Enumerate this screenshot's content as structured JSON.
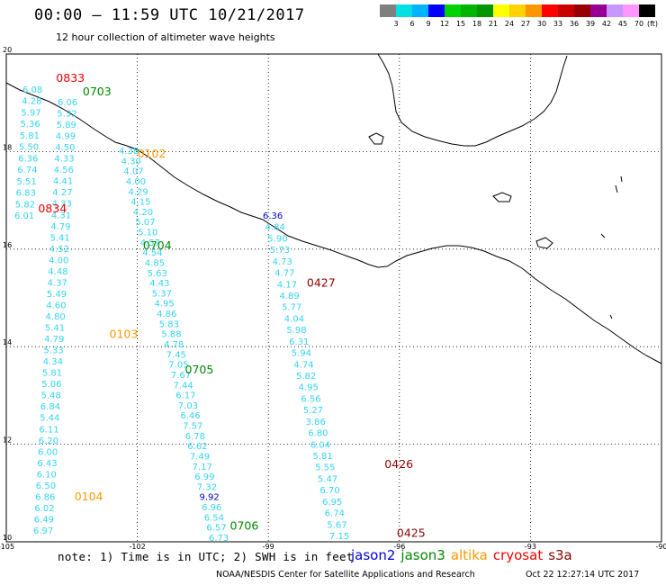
{
  "header": {
    "title": "00:00 – 11:59 UTC 10/21/2017",
    "subtitle": "12 hour collection of altimeter wave heights"
  },
  "colorbar": {
    "unit": "(ft)",
    "colors": [
      "#7f7f7f",
      "#00e0e0",
      "#00b4ff",
      "#0000ff",
      "#00d200",
      "#00b400",
      "#009600",
      "#ffff00",
      "#ffd200",
      "#ff9600",
      "#ff0000",
      "#c80000",
      "#960000",
      "#960096",
      "#c896ff",
      "#ff96ff",
      "#000000"
    ],
    "labels": [
      "3",
      "6",
      "9",
      "12",
      "15",
      "18",
      "21",
      "24",
      "27",
      "30",
      "33",
      "36",
      "39",
      "42",
      "45",
      "70"
    ]
  },
  "axes": {
    "x_ticks": [
      "-105",
      "-102",
      "-99",
      "-96",
      "-93",
      "-90"
    ],
    "y_ticks": [
      "20",
      "18",
      "16",
      "14",
      "12",
      "10"
    ],
    "lon_range": [
      -105,
      -90
    ],
    "lat_range": [
      10,
      20
    ]
  },
  "satellite_colors": {
    "jason2": "#0000dd",
    "jason3": "#008800",
    "altika": "#ff9900",
    "cryosat": "#ee0000",
    "s3a": "#8b0000"
  },
  "tracks": [
    {
      "values": [
        "6.08",
        "4.28",
        "5.97",
        "5.36",
        "5.81",
        "5.50",
        "6.36",
        "6.74",
        "5.51",
        "6.83",
        "5.82",
        "6.01"
      ],
      "start": [
        25,
        103
      ],
      "end": [
        16,
        243
      ]
    },
    {
      "values": [
        "6.06",
        "5.32",
        "5.89",
        "4.99",
        "4.50",
        "4.33",
        "4.56",
        "4.41",
        "4.27",
        "4.33",
        "4.31",
        "4.79",
        "5.41",
        "4.52",
        "4.00",
        "4.48",
        "4.37",
        "5.49",
        "4.60",
        "4.80",
        "5.41",
        "4.79",
        "5.33",
        "4.34",
        "5.81",
        "5.06",
        "5.48",
        "6.84",
        "5.44",
        "6.11",
        "6.20",
        "6.00",
        "6.43",
        "6.10",
        "6.50",
        "6.86",
        "6.02",
        "6.49",
        "6.97"
      ],
      "start": [
        64,
        117
      ],
      "end": [
        37,
        593
      ]
    },
    {
      "values": [
        "4.38",
        "4.30",
        "4.07",
        "4.00",
        "4.29",
        "4.15",
        "4.20",
        "5.07",
        "5.10",
        "4.57",
        "4.54",
        "4.85",
        "5.63",
        "4.43",
        "5.37",
        "4.95",
        "4.86",
        "5.83",
        "5.88",
        "4.78",
        "7.45",
        "7.05",
        "7.67",
        "7.44",
        "6.17",
        "7.03",
        "6.46",
        "7.57",
        "6.78",
        "6.62",
        "7.49",
        "7.17",
        "6.99",
        "7.32",
        "9.92",
        "6.96",
        "6.54",
        "6.57",
        "6.73"
      ],
      "start": [
        132,
        171
      ],
      "end": [
        232,
        601
      ],
      "hi": [
        "9.92"
      ]
    },
    {
      "values": [
        "6.36",
        "4.84",
        "5.90",
        "5.73",
        "4.73",
        "4.77",
        "4.17",
        "4.89",
        "5.77",
        "4.04",
        "5.98",
        "6.31",
        "5.94",
        "4.74",
        "5.82",
        "4.95",
        "6.56",
        "5.27",
        "3.86",
        "6.80",
        "6.04",
        "5.81",
        "5.55",
        "5.47",
        "6.70",
        "6.95",
        "6.74",
        "5.67",
        "7.15"
      ],
      "start": [
        292,
        243
      ],
      "end": [
        366,
        599
      ],
      "hi": [
        "6.36"
      ]
    }
  ],
  "time_labels": [
    {
      "text": "0833",
      "sat": "cryosat",
      "lon": -103.86,
      "lat": 19.43
    },
    {
      "text": "0703",
      "sat": "jason3",
      "lon": -103.25,
      "lat": 19.15
    },
    {
      "text": "0102",
      "sat": "altika",
      "lon": -102.0,
      "lat": 17.88
    },
    {
      "text": "0834",
      "sat": "cryosat",
      "lon": -104.27,
      "lat": 16.75
    },
    {
      "text": "0704",
      "sat": "jason3",
      "lon": -101.87,
      "lat": 16.0
    },
    {
      "text": "0427",
      "sat": "s3a",
      "lon": -98.12,
      "lat": 15.23
    },
    {
      "text": "0103",
      "sat": "altika",
      "lon": -102.64,
      "lat": 14.18
    },
    {
      "text": "0705",
      "sat": "jason3",
      "lon": -100.91,
      "lat": 13.45
    },
    {
      "text": "0426",
      "sat": "s3a",
      "lon": -96.34,
      "lat": 11.51
    },
    {
      "text": "0104",
      "sat": "altika",
      "lon": -103.44,
      "lat": 10.85
    },
    {
      "text": "0706",
      "sat": "jason3",
      "lon": -99.88,
      "lat": 10.25
    },
    {
      "text": "0425",
      "sat": "s3a",
      "lon": -96.06,
      "lat": 10.1
    }
  ],
  "note": "note: 1) Time is in UTC; 2) SWH is in feet",
  "legend": [
    "jason2",
    "jason3",
    "altika",
    "cryosat",
    "s3a"
  ],
  "footer": "NOAA/NESDIS Center for Satellite Applications and Research",
  "stamp": "Oct 22 12:27:14 UTC 2017"
}
